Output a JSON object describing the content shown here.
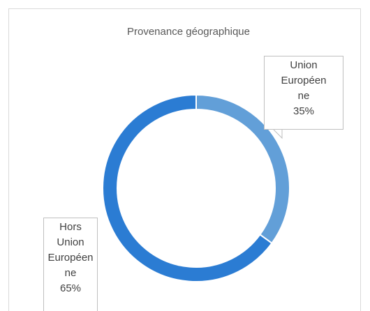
{
  "chart_data": {
    "type": "donut",
    "title": "Provenance géographique",
    "categories": [
      "Union Européenne",
      "Hors Union Européenne"
    ],
    "values": [
      35,
      65
    ],
    "value_labels": [
      "35%",
      "65%"
    ],
    "colors": [
      "#629fd8",
      "#2b7cd3"
    ]
  }
}
